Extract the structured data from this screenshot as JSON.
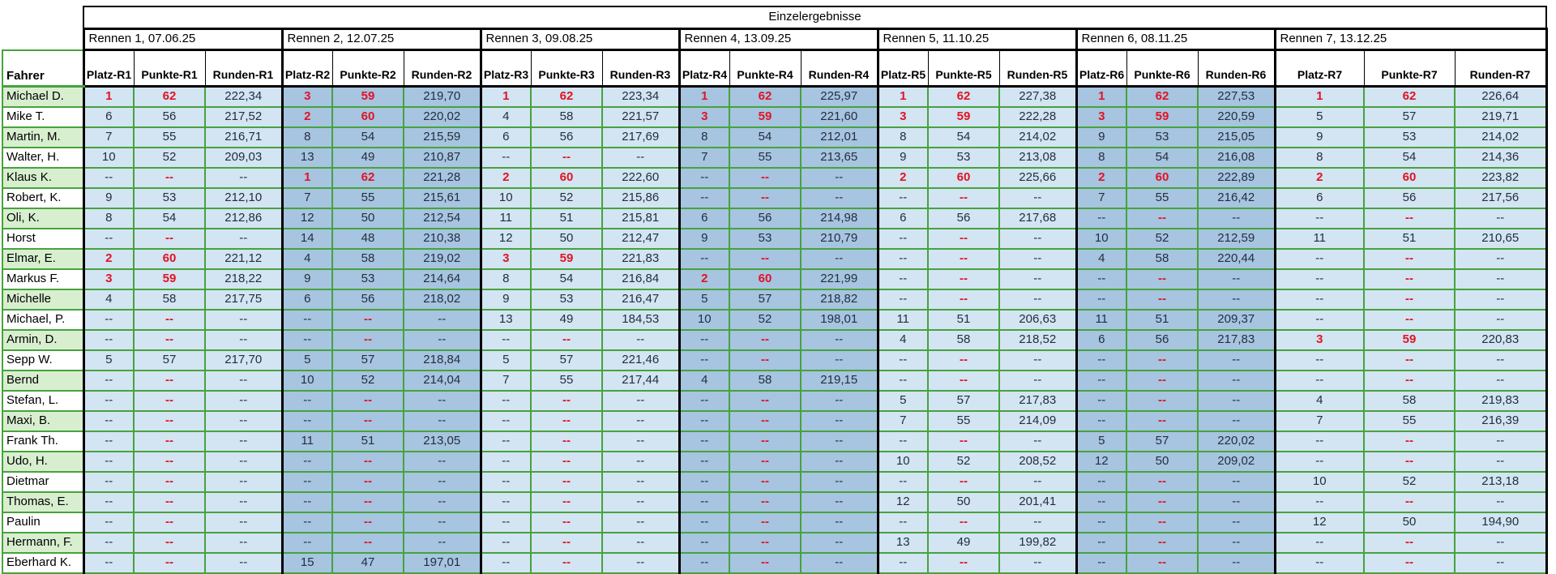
{
  "title": "Einzelergebnisse",
  "fahrer_label": "Fahrer",
  "colors": {
    "grid_green": "#46a33c",
    "block_border": "#000000",
    "row_green": "#d8efcf",
    "race_blue_light": "#d3e4f3",
    "race_blue_dark": "#a7c4e0",
    "top3_red": "#e01422",
    "value_text": "#222f3f"
  },
  "races": [
    {
      "label": "Rennen 1, 07.06.25",
      "columns": [
        "Platz-R1",
        "Punkte-R1",
        "Runden-R1"
      ]
    },
    {
      "label": "Rennen 2, 12.07.25",
      "columns": [
        "Platz-R2",
        "Punkte-R2",
        "Runden-R2"
      ]
    },
    {
      "label": "Rennen 3, 09.08.25",
      "columns": [
        "Platz-R3",
        "Punkte-R3",
        "Runden-R3"
      ]
    },
    {
      "label": "Rennen 4, 13.09.25",
      "columns": [
        "Platz-R4",
        "Punkte-R4",
        "Runden-R4"
      ]
    },
    {
      "label": "Rennen 5, 11.10.25",
      "columns": [
        "Platz-R5",
        "Punkte-R5",
        "Runden-R5"
      ]
    },
    {
      "label": "Rennen 6, 08.11.25",
      "columns": [
        "Platz-R6",
        "Punkte-R6",
        "Runden-R6"
      ]
    },
    {
      "label": "Rennen 7, 13.12.25",
      "columns": [
        "Platz-R7",
        "Punkte-R7",
        "Runden-R7"
      ]
    }
  ],
  "drivers": [
    {
      "name": "Michael D.",
      "results": [
        [
          "1",
          "62",
          "222,34"
        ],
        [
          "3",
          "59",
          "219,70"
        ],
        [
          "1",
          "62",
          "223,34"
        ],
        [
          "1",
          "62",
          "225,97"
        ],
        [
          "1",
          "62",
          "227,38"
        ],
        [
          "1",
          "62",
          "227,53"
        ],
        [
          "1",
          "62",
          "226,64"
        ]
      ]
    },
    {
      "name": "Mike T.",
      "results": [
        [
          "6",
          "56",
          "217,52"
        ],
        [
          "2",
          "60",
          "220,02"
        ],
        [
          "4",
          "58",
          "221,57"
        ],
        [
          "3",
          "59",
          "221,60"
        ],
        [
          "3",
          "59",
          "222,28"
        ],
        [
          "3",
          "59",
          "220,59"
        ],
        [
          "5",
          "57",
          "219,71"
        ]
      ]
    },
    {
      "name": "Martin, M.",
      "results": [
        [
          "7",
          "55",
          "216,71"
        ],
        [
          "8",
          "54",
          "215,59"
        ],
        [
          "6",
          "56",
          "217,69"
        ],
        [
          "8",
          "54",
          "212,01"
        ],
        [
          "8",
          "54",
          "214,02"
        ],
        [
          "9",
          "53",
          "215,05"
        ],
        [
          "9",
          "53",
          "214,02"
        ]
      ]
    },
    {
      "name": "Walter, H.",
      "results": [
        [
          "10",
          "52",
          "209,03"
        ],
        [
          "13",
          "49",
          "210,87"
        ],
        [
          "--",
          "--",
          "--"
        ],
        [
          "7",
          "55",
          "213,65"
        ],
        [
          "9",
          "53",
          "213,08"
        ],
        [
          "8",
          "54",
          "216,08"
        ],
        [
          "8",
          "54",
          "214,36"
        ]
      ]
    },
    {
      "name": "Klaus K.",
      "results": [
        [
          "--",
          "--",
          "--"
        ],
        [
          "1",
          "62",
          "221,28"
        ],
        [
          "2",
          "60",
          "222,60"
        ],
        [
          "--",
          "--",
          "--"
        ],
        [
          "2",
          "60",
          "225,66"
        ],
        [
          "2",
          "60",
          "222,89"
        ],
        [
          "2",
          "60",
          "223,82"
        ]
      ]
    },
    {
      "name": "Robert, K.",
      "results": [
        [
          "9",
          "53",
          "212,10"
        ],
        [
          "7",
          "55",
          "215,61"
        ],
        [
          "10",
          "52",
          "215,86"
        ],
        [
          "--",
          "--",
          "--"
        ],
        [
          "--",
          "--",
          "--"
        ],
        [
          "7",
          "55",
          "216,42"
        ],
        [
          "6",
          "56",
          "217,56"
        ]
      ]
    },
    {
      "name": "Oli, K.",
      "results": [
        [
          "8",
          "54",
          "212,86"
        ],
        [
          "12",
          "50",
          "212,54"
        ],
        [
          "11",
          "51",
          "215,81"
        ],
        [
          "6",
          "56",
          "214,98"
        ],
        [
          "6",
          "56",
          "217,68"
        ],
        [
          "--",
          "--",
          "--"
        ],
        [
          "--",
          "--",
          "--"
        ]
      ]
    },
    {
      "name": "Horst",
      "results": [
        [
          "--",
          "--",
          "--"
        ],
        [
          "14",
          "48",
          "210,38"
        ],
        [
          "12",
          "50",
          "212,47"
        ],
        [
          "9",
          "53",
          "210,79"
        ],
        [
          "--",
          "--",
          "--"
        ],
        [
          "10",
          "52",
          "212,59"
        ],
        [
          "11",
          "51",
          "210,65"
        ]
      ]
    },
    {
      "name": "Elmar, E.",
      "results": [
        [
          "2",
          "60",
          "221,12"
        ],
        [
          "4",
          "58",
          "219,02"
        ],
        [
          "3",
          "59",
          "221,83"
        ],
        [
          "--",
          "--",
          "--"
        ],
        [
          "--",
          "--",
          "--"
        ],
        [
          "4",
          "58",
          "220,44"
        ],
        [
          "--",
          "--",
          "--"
        ]
      ]
    },
    {
      "name": "Markus F.",
      "results": [
        [
          "3",
          "59",
          "218,22"
        ],
        [
          "9",
          "53",
          "214,64"
        ],
        [
          "8",
          "54",
          "216,84"
        ],
        [
          "2",
          "60",
          "221,99"
        ],
        [
          "--",
          "--",
          "--"
        ],
        [
          "--",
          "--",
          "--"
        ],
        [
          "--",
          "--",
          "--"
        ]
      ]
    },
    {
      "name": "Michelle",
      "results": [
        [
          "4",
          "58",
          "217,75"
        ],
        [
          "6",
          "56",
          "218,02"
        ],
        [
          "9",
          "53",
          "216,47"
        ],
        [
          "5",
          "57",
          "218,82"
        ],
        [
          "--",
          "--",
          "--"
        ],
        [
          "--",
          "--",
          "--"
        ],
        [
          "--",
          "--",
          "--"
        ]
      ]
    },
    {
      "name": "Michael, P.",
      "results": [
        [
          "--",
          "--",
          "--"
        ],
        [
          "--",
          "--",
          "--"
        ],
        [
          "13",
          "49",
          "184,53"
        ],
        [
          "10",
          "52",
          "198,01"
        ],
        [
          "11",
          "51",
          "206,63"
        ],
        [
          "11",
          "51",
          "209,37"
        ],
        [
          "--",
          "--",
          "--"
        ]
      ]
    },
    {
      "name": "Armin, D.",
      "results": [
        [
          "--",
          "--",
          "--"
        ],
        [
          "--",
          "--",
          "--"
        ],
        [
          "--",
          "--",
          "--"
        ],
        [
          "--",
          "--",
          "--"
        ],
        [
          "4",
          "58",
          "218,52"
        ],
        [
          "6",
          "56",
          "217,83"
        ],
        [
          "3",
          "59",
          "220,83"
        ]
      ]
    },
    {
      "name": "Sepp W.",
      "results": [
        [
          "5",
          "57",
          "217,70"
        ],
        [
          "5",
          "57",
          "218,84"
        ],
        [
          "5",
          "57",
          "221,46"
        ],
        [
          "--",
          "--",
          "--"
        ],
        [
          "--",
          "--",
          "--"
        ],
        [
          "--",
          "--",
          "--"
        ],
        [
          "--",
          "--",
          "--"
        ]
      ]
    },
    {
      "name": "Bernd",
      "results": [
        [
          "--",
          "--",
          "--"
        ],
        [
          "10",
          "52",
          "214,04"
        ],
        [
          "7",
          "55",
          "217,44"
        ],
        [
          "4",
          "58",
          "219,15"
        ],
        [
          "--",
          "--",
          "--"
        ],
        [
          "--",
          "--",
          "--"
        ],
        [
          "--",
          "--",
          "--"
        ]
      ]
    },
    {
      "name": "Stefan, L.",
      "results": [
        [
          "--",
          "--",
          "--"
        ],
        [
          "--",
          "--",
          "--"
        ],
        [
          "--",
          "--",
          "--"
        ],
        [
          "--",
          "--",
          "--"
        ],
        [
          "5",
          "57",
          "217,83"
        ],
        [
          "--",
          "--",
          "--"
        ],
        [
          "4",
          "58",
          "219,83"
        ]
      ]
    },
    {
      "name": "Maxi, B.",
      "results": [
        [
          "--",
          "--",
          "--"
        ],
        [
          "--",
          "--",
          "--"
        ],
        [
          "--",
          "--",
          "--"
        ],
        [
          "--",
          "--",
          "--"
        ],
        [
          "7",
          "55",
          "214,09"
        ],
        [
          "--",
          "--",
          "--"
        ],
        [
          "7",
          "55",
          "216,39"
        ]
      ]
    },
    {
      "name": "Frank Th.",
      "results": [
        [
          "--",
          "--",
          "--"
        ],
        [
          "11",
          "51",
          "213,05"
        ],
        [
          "--",
          "--",
          "--"
        ],
        [
          "--",
          "--",
          "--"
        ],
        [
          "--",
          "--",
          "--"
        ],
        [
          "5",
          "57",
          "220,02"
        ],
        [
          "--",
          "--",
          "--"
        ]
      ]
    },
    {
      "name": "Udo, H.",
      "results": [
        [
          "--",
          "--",
          "--"
        ],
        [
          "--",
          "--",
          "--"
        ],
        [
          "--",
          "--",
          "--"
        ],
        [
          "--",
          "--",
          "--"
        ],
        [
          "10",
          "52",
          "208,52"
        ],
        [
          "12",
          "50",
          "209,02"
        ],
        [
          "--",
          "--",
          "--"
        ]
      ]
    },
    {
      "name": "Dietmar",
      "results": [
        [
          "--",
          "--",
          "--"
        ],
        [
          "--",
          "--",
          "--"
        ],
        [
          "--",
          "--",
          "--"
        ],
        [
          "--",
          "--",
          "--"
        ],
        [
          "--",
          "--",
          "--"
        ],
        [
          "--",
          "--",
          "--"
        ],
        [
          "10",
          "52",
          "213,18"
        ]
      ]
    },
    {
      "name": "Thomas, E.",
      "results": [
        [
          "--",
          "--",
          "--"
        ],
        [
          "--",
          "--",
          "--"
        ],
        [
          "--",
          "--",
          "--"
        ],
        [
          "--",
          "--",
          "--"
        ],
        [
          "12",
          "50",
          "201,41"
        ],
        [
          "--",
          "--",
          "--"
        ],
        [
          "--",
          "--",
          "--"
        ]
      ]
    },
    {
      "name": "Paulin",
      "results": [
        [
          "--",
          "--",
          "--"
        ],
        [
          "--",
          "--",
          "--"
        ],
        [
          "--",
          "--",
          "--"
        ],
        [
          "--",
          "--",
          "--"
        ],
        [
          "--",
          "--",
          "--"
        ],
        [
          "--",
          "--",
          "--"
        ],
        [
          "12",
          "50",
          "194,90"
        ]
      ]
    },
    {
      "name": "Hermann, F.",
      "results": [
        [
          "--",
          "--",
          "--"
        ],
        [
          "--",
          "--",
          "--"
        ],
        [
          "--",
          "--",
          "--"
        ],
        [
          "--",
          "--",
          "--"
        ],
        [
          "13",
          "49",
          "199,82"
        ],
        [
          "--",
          "--",
          "--"
        ],
        [
          "--",
          "--",
          "--"
        ]
      ]
    },
    {
      "name": "Eberhard K.",
      "results": [
        [
          "--",
          "--",
          "--"
        ],
        [
          "15",
          "47",
          "197,01"
        ],
        [
          "--",
          "--",
          "--"
        ],
        [
          "--",
          "--",
          "--"
        ],
        [
          "--",
          "--",
          "--"
        ],
        [
          "--",
          "--",
          "--"
        ],
        [
          "--",
          "--",
          "--"
        ]
      ]
    }
  ]
}
